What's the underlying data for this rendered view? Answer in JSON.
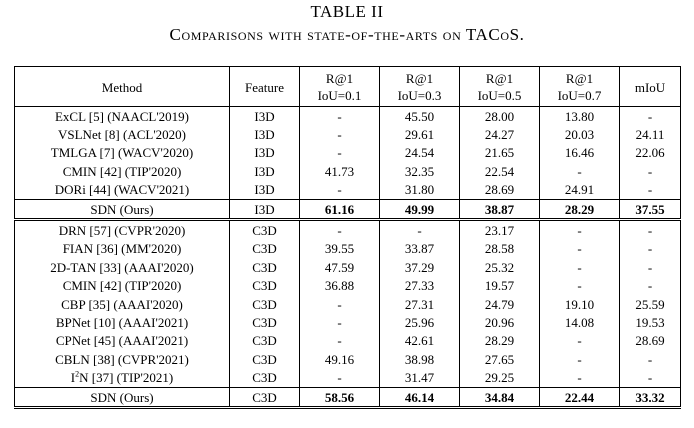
{
  "caption": {
    "label": "TABLE II",
    "text": "Comparisons with state-of-the-arts on TACoS."
  },
  "columns": {
    "method": "Method",
    "feature": "Feature",
    "r1_top": "R@1",
    "r1_bottom": "IoU=0.1",
    "r3_top": "R@1",
    "r3_bottom": "IoU=0.3",
    "r5_top": "R@1",
    "r5_bottom": "IoU=0.5",
    "r7_top": "R@1",
    "r7_bottom": "IoU=0.7",
    "miou": "mIoU"
  },
  "i3d_rows": [
    {
      "method": "ExCL [5] (NAACL'2019)",
      "feature": "I3D",
      "r1": "-",
      "r3": "45.50",
      "r5": "28.00",
      "r7": "13.80",
      "miou": "-"
    },
    {
      "method": "VSLNet [8] (ACL'2020)",
      "feature": "I3D",
      "r1": "-",
      "r3": "29.61",
      "r5": "24.27",
      "r7": "20.03",
      "miou": "24.11"
    },
    {
      "method": "TMLGA [7] (WACV'2020)",
      "feature": "I3D",
      "r1": "-",
      "r3": "24.54",
      "r5": "21.65",
      "r7": "16.46",
      "miou": "22.06"
    },
    {
      "method": "CMIN [42] (TIP'2020)",
      "feature": "I3D",
      "r1": "41.73",
      "r3": "32.35",
      "r5": "22.54",
      "r7": "-",
      "miou": "-"
    },
    {
      "method": "DORi [44] (WACV'2021)",
      "feature": "I3D",
      "r1": "-",
      "r3": "31.80",
      "r5": "28.69",
      "r7": "24.91",
      "miou": "-"
    }
  ],
  "i3d_ours": {
    "method": "SDN (Ours)",
    "feature": "I3D",
    "r1": "61.16",
    "r3": "49.99",
    "r5": "38.87",
    "r7": "28.29",
    "miou": "37.55"
  },
  "c3d_rows": [
    {
      "method": "DRN [57] (CVPR'2020)",
      "feature": "C3D",
      "r1": "-",
      "r3": "-",
      "r5": "23.17",
      "r7": "-",
      "miou": "-"
    },
    {
      "method": "FIAN [36] (MM'2020)",
      "feature": "C3D",
      "r1": "39.55",
      "r3": "33.87",
      "r5": "28.58",
      "r7": "-",
      "miou": "-"
    },
    {
      "method": "2D-TAN [33] (AAAI'2020)",
      "feature": "C3D",
      "r1": "47.59",
      "r3": "37.29",
      "r5": "25.32",
      "r7": "-",
      "miou": "-"
    },
    {
      "method": "CMIN [42] (TIP'2020)",
      "feature": "C3D",
      "r1": "36.88",
      "r3": "27.33",
      "r5": "19.57",
      "r7": "-",
      "miou": "-"
    },
    {
      "method": "CBP [35] (AAAI'2020)",
      "feature": "C3D",
      "r1": "-",
      "r3": "27.31",
      "r5": "24.79",
      "r7": "19.10",
      "miou": "25.59"
    },
    {
      "method": "BPNet [10] (AAAI'2021)",
      "feature": "C3D",
      "r1": "-",
      "r3": "25.96",
      "r5": "20.96",
      "r7": "14.08",
      "miou": "19.53"
    },
    {
      "method": "CPNet [45] (AAAI'2021)",
      "feature": "C3D",
      "r1": "-",
      "r3": "42.61",
      "r5": "28.29",
      "r7": "-",
      "miou": "28.69"
    },
    {
      "method": "CBLN [38] (CVPR'2021)",
      "feature": "C3D",
      "r1": "49.16",
      "r3": "38.98",
      "r5": "27.65",
      "r7": "-",
      "miou": "-"
    },
    {
      "method_prefix": "I",
      "method_sup": "2",
      "method_rest": "N [37] (TIP'2021)",
      "feature": "C3D",
      "r1": "-",
      "r3": "31.47",
      "r5": "29.25",
      "r7": "-",
      "miou": "-"
    }
  ],
  "c3d_ours": {
    "method": "SDN (Ours)",
    "feature": "C3D",
    "r1": "58.56",
    "r3": "46.14",
    "r5": "34.84",
    "r7": "22.44",
    "miou": "33.32"
  }
}
